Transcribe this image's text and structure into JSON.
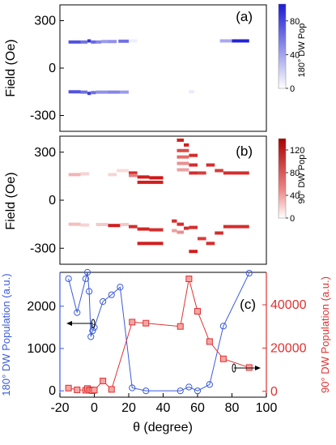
{
  "chart_data": [
    {
      "type": "heatmap",
      "panel_label": "(a)",
      "ylabel": "Field (Oe)",
      "yticks": [
        300,
        0,
        -300
      ],
      "ylim": [
        -400,
        400
      ],
      "xlim": [
        -20,
        100
      ],
      "colorbar": {
        "label": "180° DW Pop",
        "ticks": [
          80,
          40,
          0
        ],
        "range": [
          0,
          100
        ],
        "color_low": "#ffffff",
        "color_high": "#1a1ad4"
      },
      "stripes": [
        {
          "x0": -15,
          "x1": -8,
          "y": 165,
          "v": 70
        },
        {
          "x0": -8,
          "x1": -4,
          "y": 165,
          "v": 55
        },
        {
          "x0": -4,
          "x1": -2,
          "y": 172,
          "v": 85
        },
        {
          "x0": -2,
          "x1": 1,
          "y": 165,
          "v": 60
        },
        {
          "x0": 1,
          "x1": 4,
          "y": 165,
          "v": 45
        },
        {
          "x0": 4,
          "x1": 8,
          "y": 168,
          "v": 35
        },
        {
          "x0": 8,
          "x1": 13,
          "y": 168,
          "v": 40
        },
        {
          "x0": 14,
          "x1": 20,
          "y": 170,
          "v": 55
        },
        {
          "x0": 20,
          "x1": 25,
          "y": 172,
          "v": 4
        },
        {
          "x0": 73,
          "x1": 80,
          "y": 172,
          "v": 30
        },
        {
          "x0": 80,
          "x1": 90,
          "y": 172,
          "v": 95
        },
        {
          "x0": -15,
          "x1": -8,
          "y": -150,
          "v": 70
        },
        {
          "x0": -8,
          "x1": -4,
          "y": -152,
          "v": 55
        },
        {
          "x0": -4,
          "x1": -2,
          "y": -160,
          "v": 80
        },
        {
          "x0": -2,
          "x1": 1,
          "y": -155,
          "v": 55
        },
        {
          "x0": 1,
          "x1": 8,
          "y": -152,
          "v": 40
        },
        {
          "x0": 8,
          "x1": 15,
          "y": -152,
          "v": 45
        },
        {
          "x0": 15,
          "x1": 20,
          "y": -152,
          "v": 35
        },
        {
          "x0": 55,
          "x1": 58,
          "y": -150,
          "v": 5
        }
      ]
    },
    {
      "type": "heatmap",
      "panel_label": "(b)",
      "ylabel": "Field (Oe)",
      "yticks": [
        300,
        0,
        -300
      ],
      "ylim": [
        -400,
        400
      ],
      "xlim": [
        -20,
        100
      ],
      "colorbar": {
        "label": "90° DW Pop",
        "ticks": [
          120,
          80,
          40,
          0
        ],
        "range": [
          0,
          140
        ],
        "color_low": "#ffffff",
        "color_high": "#cc0000"
      },
      "stripes": [
        {
          "x0": -15,
          "x1": -8,
          "y": 160,
          "v": 30
        },
        {
          "x0": -8,
          "x1": -3,
          "y": 165,
          "v": 15
        },
        {
          "x0": 8,
          "x1": 13,
          "y": 160,
          "v": 15
        },
        {
          "x0": 13,
          "x1": 20,
          "y": 185,
          "v": 12
        },
        {
          "x0": 20,
          "x1": 25,
          "y": 170,
          "v": 110
        },
        {
          "x0": 25,
          "x1": 32,
          "y": 145,
          "v": 120
        },
        {
          "x0": 32,
          "x1": 40,
          "y": 140,
          "v": 125
        },
        {
          "x0": 20,
          "x1": 25,
          "y": 155,
          "v": 60
        },
        {
          "x0": 25,
          "x1": 40,
          "y": 112,
          "v": 120
        },
        {
          "x0": 48,
          "x1": 52,
          "y": 375,
          "v": 120
        },
        {
          "x0": 52,
          "x1": 55,
          "y": 345,
          "v": 120
        },
        {
          "x0": 48,
          "x1": 55,
          "y": 310,
          "v": 90
        },
        {
          "x0": 48,
          "x1": 55,
          "y": 270,
          "v": 70
        },
        {
          "x0": 48,
          "x1": 55,
          "y": 230,
          "v": 50
        },
        {
          "x0": 48,
          "x1": 55,
          "y": 190,
          "v": 40
        },
        {
          "x0": 55,
          "x1": 60,
          "y": 280,
          "v": 110
        },
        {
          "x0": 55,
          "x1": 60,
          "y": 220,
          "v": 110
        },
        {
          "x0": 55,
          "x1": 60,
          "y": 170,
          "v": 110
        },
        {
          "x0": 60,
          "x1": 65,
          "y": 170,
          "v": 100
        },
        {
          "x0": 65,
          "x1": 70,
          "y": 220,
          "v": 110
        },
        {
          "x0": 70,
          "x1": 75,
          "y": 185,
          "v": 100
        },
        {
          "x0": 75,
          "x1": 90,
          "y": 170,
          "v": 110
        },
        {
          "x0": -15,
          "x1": -8,
          "y": -150,
          "v": 25
        },
        {
          "x0": -8,
          "x1": -3,
          "y": -155,
          "v": 15
        },
        {
          "x0": 1,
          "x1": 8,
          "y": -152,
          "v": 20
        },
        {
          "x0": 8,
          "x1": 15,
          "y": -158,
          "v": 120
        },
        {
          "x0": 15,
          "x1": 20,
          "y": -152,
          "v": 20
        },
        {
          "x0": 20,
          "x1": 25,
          "y": -165,
          "v": 110
        },
        {
          "x0": 25,
          "x1": 32,
          "y": -180,
          "v": 115
        },
        {
          "x0": 32,
          "x1": 40,
          "y": -185,
          "v": 110
        },
        {
          "x0": 25,
          "x1": 40,
          "y": -270,
          "v": 120
        },
        {
          "x0": 45,
          "x1": 48,
          "y": -130,
          "v": 110
        },
        {
          "x0": 48,
          "x1": 52,
          "y": -150,
          "v": 110
        },
        {
          "x0": 52,
          "x1": 55,
          "y": -175,
          "v": 110
        },
        {
          "x0": 55,
          "x1": 60,
          "y": -170,
          "v": 110
        },
        {
          "x0": 55,
          "x1": 60,
          "y": -320,
          "v": 120
        },
        {
          "x0": 60,
          "x1": 65,
          "y": -240,
          "v": 100
        },
        {
          "x0": 65,
          "x1": 70,
          "y": -270,
          "v": 110
        },
        {
          "x0": 70,
          "x1": 75,
          "y": -205,
          "v": 110
        },
        {
          "x0": 75,
          "x1": 90,
          "y": -165,
          "v": 110
        },
        {
          "x0": 45,
          "x1": 48,
          "y": -190,
          "v": 40
        },
        {
          "x0": 48,
          "x1": 52,
          "y": -200,
          "v": 50
        }
      ]
    },
    {
      "type": "line",
      "panel_label": "(c)",
      "xlabel": "θ (degree)",
      "xlim": [
        -20,
        100
      ],
      "xticks": [
        -20,
        0,
        20,
        40,
        60,
        80,
        100
      ],
      "ylabel_left": "180° DW Population (a.u.)",
      "ylabel_right": "90° DW Population (a.u.)",
      "ylim_left": [
        -150,
        2800
      ],
      "yticks_left": [
        0,
        1000,
        2000
      ],
      "ylim_right": [
        -2700,
        55000
      ],
      "yticks_right": [
        0,
        20000,
        40000
      ],
      "series": [
        {
          "axis": "left",
          "color": "#3b5bdb",
          "marker": "circle",
          "x": [
            -15,
            -10,
            -5,
            -4,
            -3,
            -2,
            -1,
            0,
            5,
            10,
            15,
            22,
            30,
            50,
            55,
            60,
            67,
            75,
            90
          ],
          "y": [
            2650,
            1850,
            2650,
            2800,
            2350,
            1280,
            1420,
            1500,
            2110,
            2270,
            2450,
            70,
            0,
            0,
            90,
            0,
            150,
            1530,
            2780
          ]
        },
        {
          "axis": "right",
          "color": "#e03131",
          "marker": "square",
          "x": [
            -15,
            -10,
            -5,
            -4,
            -3,
            -2,
            -1,
            0,
            5,
            10,
            22,
            30,
            50,
            55,
            60,
            67,
            75,
            90
          ],
          "y": [
            1500,
            700,
            500,
            1300,
            500,
            700,
            300,
            600,
            4800,
            900,
            32000,
            31500,
            30000,
            52000,
            37000,
            23000,
            15000,
            11000
          ]
        }
      ]
    }
  ]
}
